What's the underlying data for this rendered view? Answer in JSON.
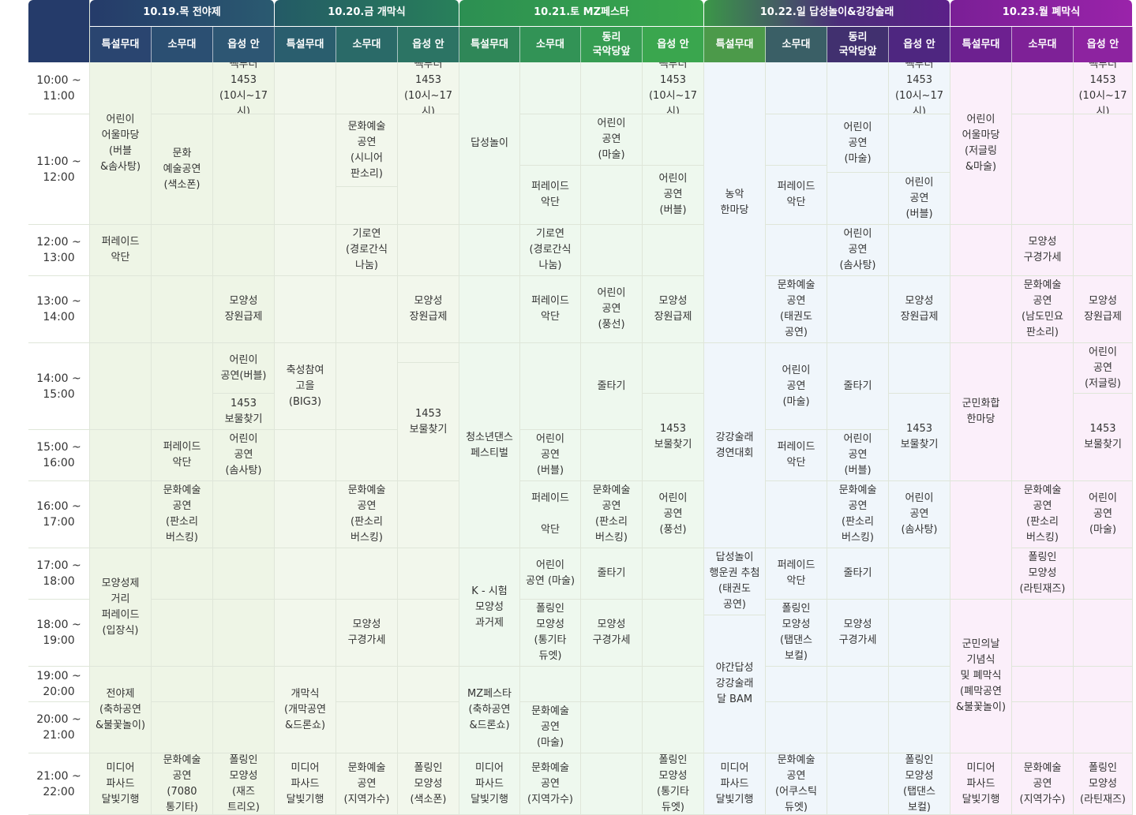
{
  "corner_label": "",
  "days": [
    {
      "label": "10.19.목 전야제",
      "color": "#2a4d6e"
    },
    {
      "label": "10.20.금 개막식",
      "color": "#22645a"
    },
    {
      "label": "10.21.토 MZ페스타",
      "color": "#2f9e4f"
    },
    {
      "label": "10.22.일 답성놀이&강강술래",
      "color": "#5b2d8a"
    },
    {
      "label": "10.23.월 폐막식",
      "color": "#8b1e9d"
    }
  ],
  "venues": [
    "특설무대",
    "소무대",
    "읍성 안",
    "특설무대",
    "소무대",
    "읍성 안",
    "특설무대",
    "소무대",
    "동리\n국악당앞",
    "읍성 안",
    "특설무대",
    "소무대",
    "동리\n국악당앞",
    "읍성 안",
    "특설무대",
    "소무대",
    "읍성 안"
  ],
  "times": [
    "10:00 ~\n11:00",
    "11:00 ~\n12:00",
    "12:00 ~\n13:00",
    "13:00 ~\n14:00",
    "14:00 ~\n15:00",
    "15:00 ~\n16:00",
    "16:00 ~\n17:00",
    "17:00 ~\n18:00",
    "18:00 ~\n19:00",
    "19:00 ~\n20:00",
    "20:00 ~\n21:00",
    "21:00 ~\n22:00"
  ],
  "events": {
    "d19_special": [
      "어린이\n어울마당\n(버블\n&솜사탕)",
      "퍼레이드\n악단",
      "모양성제\n거리\n퍼레이드\n(입장식)",
      "전야제\n(축하공연\n&불꽃놀이)",
      "미디어\n파사드\n달빛기행"
    ],
    "d19_small": [
      "문화\n예술공연\n(색소폰)",
      "퍼레이드\n악단",
      "문화예술\n공연\n(판소리\n버스킹)",
      "문화예술\n공연\n(7080\n통기타)"
    ],
    "d19_inner": [
      "빽투더\n1453\n(10시~17시)",
      "모양성\n장원급제",
      "어린이\n공연(버블)",
      "1453\n보물찾기",
      "어린이\n공연\n(솜사탕)",
      "폴링인\n모양성\n(재즈\n트리오)"
    ],
    "d20_special": [
      "축성참여\n고을\n(BIG3)",
      "개막식\n(개막공연\n&드론쇼)",
      "미디어\n파사드\n달빛기행"
    ],
    "d20_small": [
      "문화예술\n공연\n(시니어\n판소리)",
      "기로연\n(경로간식\n나눔)",
      "문화예술\n공연\n(판소리\n버스킹)",
      "모양성\n구경가세",
      "문화예술\n공연\n(지역가수)"
    ],
    "d20_inner": [
      "빽투더\n1453\n(10시~17시)",
      "모양성\n장원급제",
      "1453\n보물찾기",
      "폴링인\n모양성\n(색소폰)"
    ],
    "d21_special": [
      "답성놀이",
      "청소년댄스\n페스티벌",
      "K - 시험\n모양성\n과거제",
      "MZ페스타\n(축하공연\n&드론쇼)",
      "미디어\n파사드\n달빛기행"
    ],
    "d21_small": [
      "퍼레이드\n악단",
      "기로연\n(경로간식\n나눔)",
      "퍼레이드\n악단",
      "어린이\n공연\n(버블)",
      "퍼레이드\n\n악단",
      "어린이\n공연 (마술)",
      "폴링인\n모양성\n(통기타\n듀엣)",
      "문화예술\n공연\n(마술)",
      "문화예술\n공연\n(지역가수)"
    ],
    "d21_dongri": [
      "어린이\n공연\n(마술)",
      "어린이\n공연\n(풍선)",
      "줄타기",
      "문화예술\n공연\n(판소리\n버스킹)",
      "줄타기",
      "모양성\n구경가세"
    ],
    "d21_inner": [
      "빽투더\n1453\n(10시~17시)",
      "어린이\n공연\n(버블)",
      "모양성\n장원급제",
      "1453\n보물찾기",
      "어린이\n공연\n(풍선)",
      "폴링인\n모양성\n(통기타\n듀엣)"
    ],
    "d22_special": [
      "농악\n한마당",
      "강강술래\n경연대회",
      "답성놀이\n행운권 추첨\n(태권도\n공연)",
      "야간답성\n강강술래\n달 BAM",
      "미디어\n파사드\n달빛기행"
    ],
    "d22_small": [
      "퍼레이드\n악단",
      "문화예술\n공연\n(태권도\n공연)",
      "어린이\n공연\n(마술)",
      "퍼레이드\n악단",
      "퍼레이드\n악단",
      "폴링인\n모양성\n(탭댄스\n보컬)",
      "문화예술\n공연\n(어쿠스틱\n듀엣)"
    ],
    "d22_dongri": [
      "어린이\n공연\n(마술)",
      "어린이\n공연\n(솜사탕)",
      "줄타기",
      "어린이\n공연\n(버블)",
      "문화예술\n공연\n(판소리\n버스킹)",
      "줄타기",
      "모양성\n구경가세"
    ],
    "d22_inner": [
      "빽투더\n1453\n(10시~17시)",
      "어린이\n공연\n(버블)",
      "모양성\n장원급제",
      "1453\n보물찾기",
      "어린이\n공연\n(솜사탕)",
      "폴링인\n모양성\n(탭댄스\n보컬)"
    ],
    "d23_special": [
      "어린이\n어울마당\n(저글링\n&마술)",
      "군민화합\n한마당",
      "군민의날\n기념식\n및 폐막식\n(폐막공연\n&불꽃놀이)",
      "미디어\n파사드\n달빛기행"
    ],
    "d23_small": [
      "모양성\n구경가세",
      "문화예술\n공연\n(남도민요\n판소리)",
      "문화예술\n공연\n(판소리\n버스킹)",
      "폴링인\n모양성\n(라틴재즈)",
      "문화예술\n공연\n(지역가수)"
    ],
    "d23_inner": [
      "빽투더\n1453\n(10시~17시)",
      "모양성\n장원급제",
      "어린이\n공연\n(저글링)",
      "1453\n보물찾기",
      "어린이\n공연\n(마술)",
      "폴링인\n모양성\n(라틴재즈)"
    ]
  },
  "palette": {
    "day19_bg": "#eef5e6",
    "day20_bg": "#f2f7ec",
    "day21_bg": "#eef8ee",
    "day22_bg": "#f0f6fb",
    "day23_bg": "#fbeffa"
  }
}
